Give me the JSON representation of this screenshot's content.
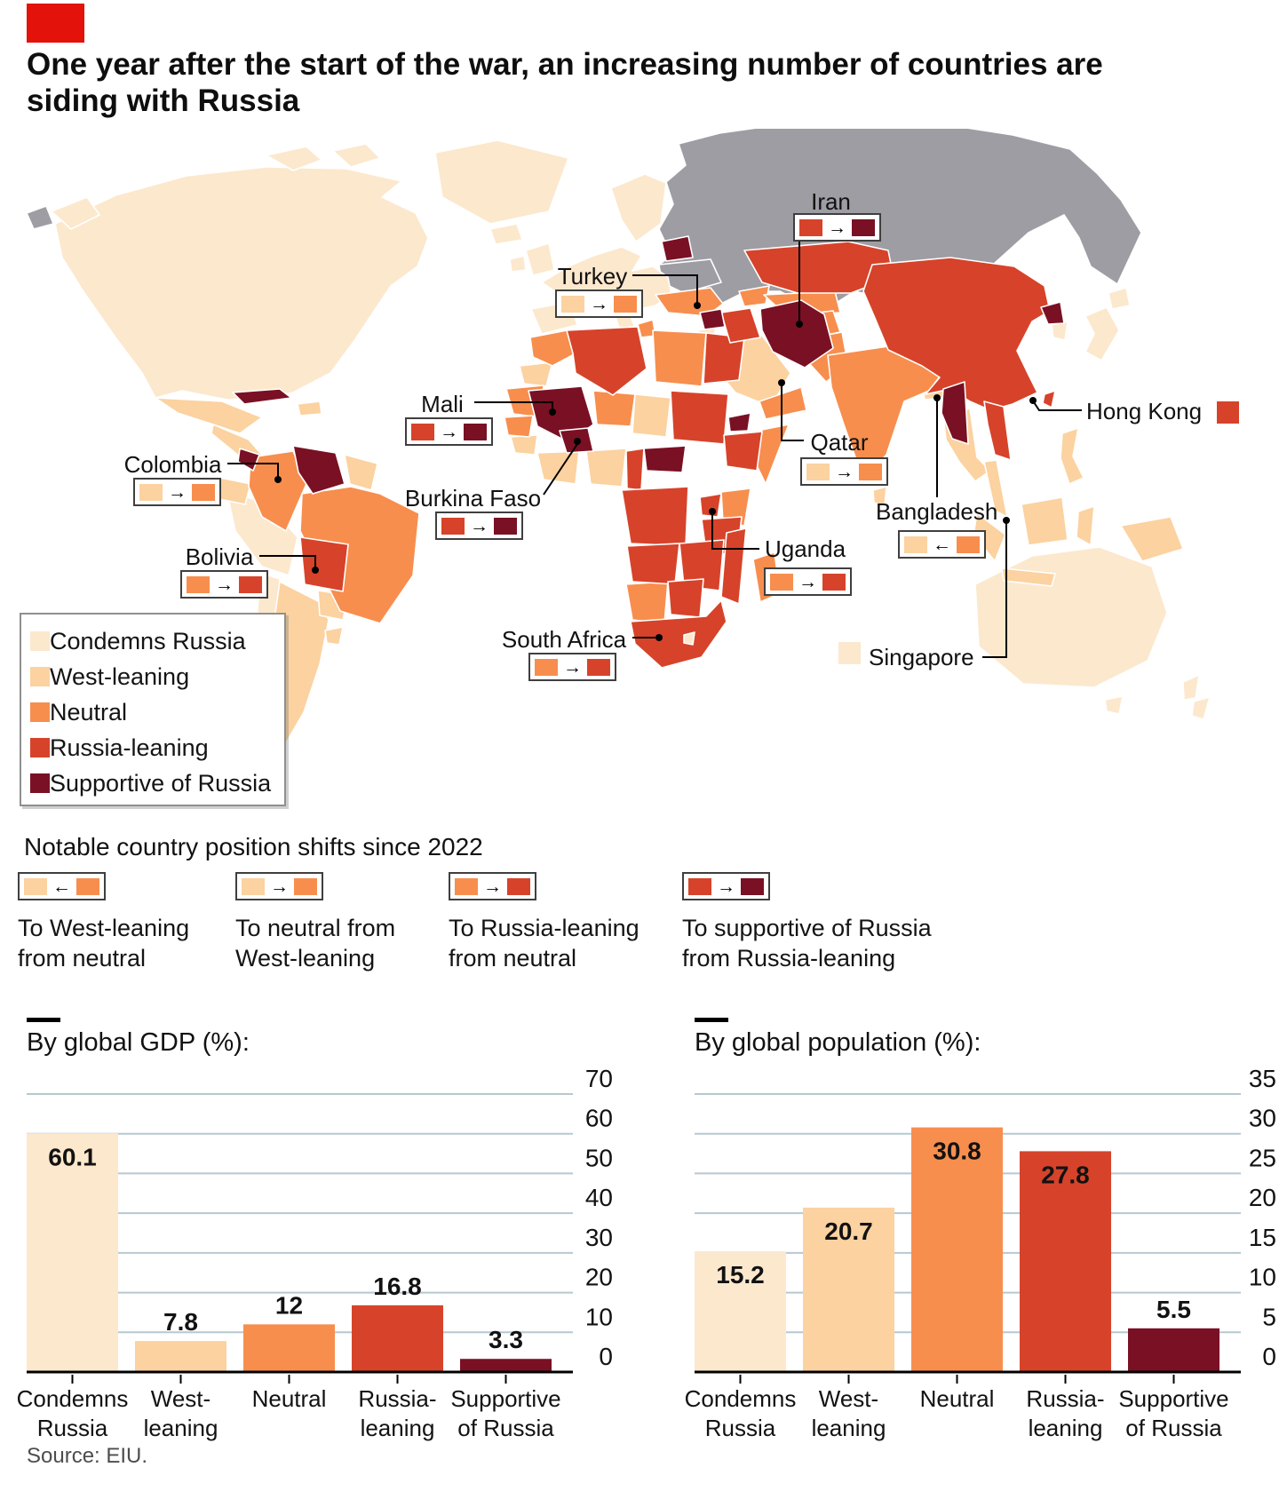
{
  "brand": {
    "accent_red": "#e3120b"
  },
  "title_lines": [
    "One year after the start of the war, an increasing number of countries are",
    "siding with Russia"
  ],
  "categories": {
    "condemns": {
      "label": "Condemns Russia",
      "color": "#fce8cd"
    },
    "west": {
      "label": "West-leaning",
      "color": "#fbd2a0"
    },
    "neutral": {
      "label": "Neutral",
      "color": "#f78e4e"
    },
    "russia": {
      "label": "Russia-leaning",
      "color": "#d6432a"
    },
    "supportive": {
      "label": "Supportive of Russia",
      "color": "#7a1024"
    }
  },
  "category_order": [
    "condemns",
    "west",
    "neutral",
    "russia",
    "supportive"
  ],
  "map": {
    "no_data_color": "#9d9da3",
    "callouts": [
      {
        "id": "iran",
        "name": "Iran",
        "from": "russia",
        "to": "supportive",
        "arrow": "right"
      },
      {
        "id": "turkey",
        "name": "Turkey",
        "from": "west",
        "to": "neutral",
        "arrow": "right"
      },
      {
        "id": "mali",
        "name": "Mali",
        "from": "russia",
        "to": "supportive",
        "arrow": "right"
      },
      {
        "id": "colombia",
        "name": "Colombia",
        "from": "west",
        "to": "neutral",
        "arrow": "right"
      },
      {
        "id": "burkina-faso",
        "name": "Burkina Faso",
        "from": "russia",
        "to": "supportive",
        "arrow": "right"
      },
      {
        "id": "bolivia",
        "name": "Bolivia",
        "from": "neutral",
        "to": "russia",
        "arrow": "right"
      },
      {
        "id": "qatar",
        "name": "Qatar",
        "from": "west",
        "to": "neutral",
        "arrow": "right"
      },
      {
        "id": "uganda",
        "name": "Uganda",
        "from": "neutral",
        "to": "russia",
        "arrow": "right"
      },
      {
        "id": "bangladesh",
        "name": "Bangladesh",
        "from": "neutral",
        "to": "west",
        "arrow": "left"
      },
      {
        "id": "south-africa",
        "name": "South Africa",
        "from": "neutral",
        "to": "russia",
        "arrow": "right"
      },
      {
        "id": "hong-kong",
        "name": "Hong Kong",
        "swatch": "russia"
      },
      {
        "id": "singapore",
        "name": "Singapore",
        "swatch": "condemns"
      }
    ]
  },
  "shifts": {
    "heading": "Notable country position shifts since 2022",
    "items": [
      {
        "from": "neutral",
        "to": "west",
        "arrow": "left",
        "label_lines": [
          "To West-leaning",
          "from neutral"
        ]
      },
      {
        "from": "west",
        "to": "neutral",
        "arrow": "right",
        "label_lines": [
          "To neutral from",
          "West-leaning"
        ]
      },
      {
        "from": "neutral",
        "to": "russia",
        "arrow": "right",
        "label_lines": [
          "To Russia-leaning",
          "from neutral"
        ]
      },
      {
        "from": "russia",
        "to": "supportive",
        "arrow": "right",
        "label_lines": [
          "To supportive of Russia",
          "from Russia-leaning"
        ]
      }
    ]
  },
  "chart_data": [
    {
      "type": "bar",
      "title": "By global GDP (%):",
      "categories": [
        "Condemns Russia",
        "West-leaning",
        "Neutral",
        "Russia-leaning",
        "Supportive of Russia"
      ],
      "category_label_lines": [
        [
          "Condemns",
          "Russia"
        ],
        [
          "West-",
          "leaning"
        ],
        [
          "Neutral"
        ],
        [
          "Russia-",
          "leaning"
        ],
        [
          "Supportive",
          "of Russia"
        ]
      ],
      "values": [
        60.1,
        7.8,
        12,
        16.8,
        3.3
      ],
      "xlabel": "",
      "ylabel": "",
      "ylim": [
        0,
        70
      ],
      "yticks": [
        0,
        10,
        20,
        30,
        40,
        50,
        60,
        70
      ],
      "grid": true,
      "axis_side": "right"
    },
    {
      "type": "bar",
      "title": "By global population (%):",
      "categories": [
        "Condemns Russia",
        "West-leaning",
        "Neutral",
        "Russia-leaning",
        "Supportive of Russia"
      ],
      "category_label_lines": [
        [
          "Condemns",
          "Russia"
        ],
        [
          "West-",
          "leaning"
        ],
        [
          "Neutral"
        ],
        [
          "Russia-",
          "leaning"
        ],
        [
          "Supportive",
          "of Russia"
        ]
      ],
      "values": [
        15.2,
        20.7,
        30.8,
        27.8,
        5.5
      ],
      "xlabel": "",
      "ylabel": "",
      "ylim": [
        0,
        35
      ],
      "yticks": [
        0,
        5,
        10,
        15,
        20,
        25,
        30,
        35
      ],
      "grid": true,
      "axis_side": "right"
    }
  ],
  "source": "Source: EIU."
}
